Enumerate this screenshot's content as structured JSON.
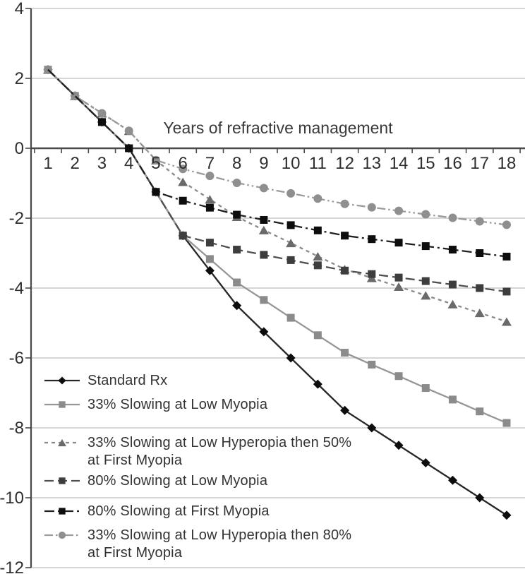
{
  "chart_data": {
    "type": "line",
    "title": "Years of refractive management",
    "x": [
      1,
      2,
      3,
      4,
      5,
      6,
      7,
      8,
      9,
      10,
      11,
      12,
      13,
      14,
      15,
      16,
      17,
      18
    ],
    "ylim": [
      -12,
      4
    ],
    "yticks": [
      4,
      2,
      0,
      -2,
      -4,
      -6,
      -8,
      -10,
      -12
    ],
    "grid": "horizontal",
    "legend_position": "inside-lower-left",
    "series": [
      {
        "id": "standard",
        "name": "Standard Rx",
        "marker": "diamond",
        "line": "solid",
        "color": "#262626",
        "marker_color": "#0d0d0d",
        "marker_start": 0,
        "values": [
          2.25,
          1.5,
          0.75,
          0,
          -1.25,
          -2.5,
          -3.5,
          -4.5,
          -5.25,
          -6,
          -6.75,
          -7.5,
          -8,
          -8.5,
          -9,
          -9.5,
          -10,
          -10.5
        ]
      },
      {
        "id": "lm33",
        "name": "33% Slowing at Low Myopia",
        "marker": "square",
        "line": "solid",
        "color": "#969696",
        "marker_color": "#8b8b8b",
        "marker_start": 0,
        "values": [
          2.25,
          1.5,
          0.75,
          0,
          -1.25,
          -2.5,
          -3.17,
          -3.84,
          -4.34,
          -4.85,
          -5.35,
          -5.85,
          -6.19,
          -6.52,
          -6.86,
          -7.19,
          -7.53,
          -7.86
        ]
      },
      {
        "id": "lh33_fm50",
        "name": "33% Slowing at Low Hyperopia then 50% at First Myopia",
        "marker": "triangle",
        "line": "short-dash",
        "color": "#8a8a8a",
        "marker_color": "#6a6a6a",
        "marker_start": 0,
        "values": [
          2.25,
          1.5,
          1.0,
          0.5,
          -0.34,
          -0.96,
          -1.46,
          -1.96,
          -2.34,
          -2.71,
          -3.09,
          -3.46,
          -3.71,
          -3.96,
          -4.21,
          -4.46,
          -4.71,
          -4.96
        ]
      },
      {
        "id": "lm80",
        "name": "80% Slowing at Low Myopia",
        "marker": "square",
        "line": "dash",
        "color": "#4f4f4f",
        "marker_color": "#3d3d3d",
        "marker_start": 3,
        "values": [
          2.25,
          1.5,
          0.75,
          0,
          -1.25,
          -2.5,
          -2.7,
          -2.9,
          -3.05,
          -3.2,
          -3.35,
          -3.5,
          -3.6,
          -3.7,
          -3.8,
          -3.9,
          -4.0,
          -4.1
        ]
      },
      {
        "id": "fm80",
        "name": "80% Slowing at First Myopia",
        "marker": "square",
        "line": "dash-dot",
        "color": "#1f1f1f",
        "marker_color": "#0d0d0d",
        "marker_start": 2,
        "values": [
          2.25,
          1.5,
          0.75,
          0,
          -1.25,
          -1.5,
          -1.7,
          -1.9,
          -2.05,
          -2.2,
          -2.35,
          -2.5,
          -2.6,
          -2.7,
          -2.8,
          -2.9,
          -3.0,
          -3.1
        ]
      },
      {
        "id": "lh33_fm80",
        "name": "33% Slowing at Low Hyperopia then 80% at First Myopia",
        "marker": "circle",
        "line": "dash-dot-dot",
        "color": "#9b9b9b",
        "marker_color": "#8f8f8f",
        "marker_start": 0,
        "values": [
          2.25,
          1.5,
          1.0,
          0.5,
          -0.34,
          -0.59,
          -0.79,
          -0.99,
          -1.14,
          -1.29,
          -1.44,
          -1.59,
          -1.69,
          -1.79,
          -1.89,
          -1.99,
          -2.09,
          -2.19
        ]
      }
    ],
    "draw_order": [
      "standard",
      "lh33_fm50",
      "lh33_fm80",
      "lm33",
      "lm80",
      "fm80"
    ]
  },
  "legend": {
    "items": [
      {
        "series": "standard",
        "line1": "Standard Rx",
        "line2": ""
      },
      {
        "series": "lm33",
        "line1": "33% Slowing at Low Myopia",
        "line2": ""
      },
      {
        "series": "lh33_fm50",
        "line1": "33% Slowing at Low Hyperopia then 50%",
        "line2": "at First Myopia"
      },
      {
        "series": "lm80",
        "line1": "80% Slowing at Low Myopia",
        "line2": ""
      },
      {
        "series": "fm80",
        "line1": "80% Slowing at First Myopia",
        "line2": ""
      },
      {
        "series": "lh33_fm80",
        "line1": "33% Slowing at Low Hyperopia then 80%",
        "line2": "at First Myopia"
      }
    ]
  }
}
